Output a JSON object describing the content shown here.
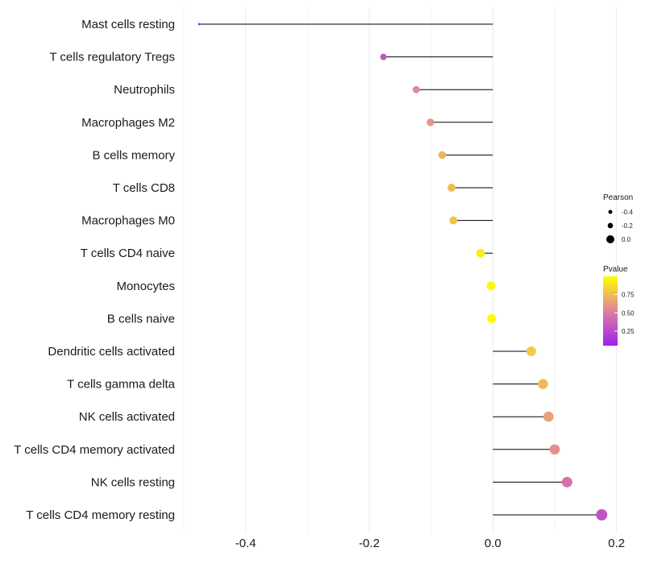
{
  "chart_data": {
    "type": "lollipop",
    "title": "",
    "xlabel": "",
    "ylabel": "",
    "xlim": [
      -0.5,
      0.22
    ],
    "xticks": [
      -0.4,
      -0.2,
      0.0,
      0.2
    ],
    "xtick_labels": [
      "-0.4",
      "-0.2",
      "0.0",
      "0.2"
    ],
    "grid": true,
    "legend_position": "right",
    "categories": [
      "Mast cells resting",
      "T cells regulatory  Tregs",
      "Neutrophils",
      "Macrophages M2",
      "B cells memory",
      "T cells CD8",
      "Macrophages M0",
      "T cells CD4 naive",
      "Monocytes",
      "B cells naive",
      "Dendritic cells activated",
      "T cells gamma delta",
      "NK cells activated",
      "T cells CD4 memory activated",
      "NK cells resting",
      "T cells CD4 memory resting"
    ],
    "pearson": [
      -0.475,
      -0.177,
      -0.124,
      -0.101,
      -0.082,
      -0.067,
      -0.064,
      -0.02,
      -0.003,
      -0.002,
      0.062,
      0.081,
      0.09,
      0.1,
      0.12,
      0.176
    ],
    "pvalue": [
      0.1,
      0.3,
      0.55,
      0.6,
      0.72,
      0.75,
      0.78,
      0.93,
      0.98,
      0.98,
      0.8,
      0.75,
      0.65,
      0.58,
      0.45,
      0.3
    ],
    "size_legend": {
      "title": "Pearson",
      "labels": [
        "-0.4",
        "-0.2",
        "0.0"
      ],
      "values": [
        -0.4,
        -0.2,
        0.0
      ]
    },
    "color_legend": {
      "title": "Pvalue",
      "labels": [
        "0.75",
        "0.50",
        "0.25"
      ],
      "values": [
        0.75,
        0.5,
        0.25
      ],
      "range": [
        0.05,
        1.0
      ],
      "low_color": "#a020f0",
      "mid_color": "#e0809f",
      "high_color": "#ffff00"
    }
  }
}
